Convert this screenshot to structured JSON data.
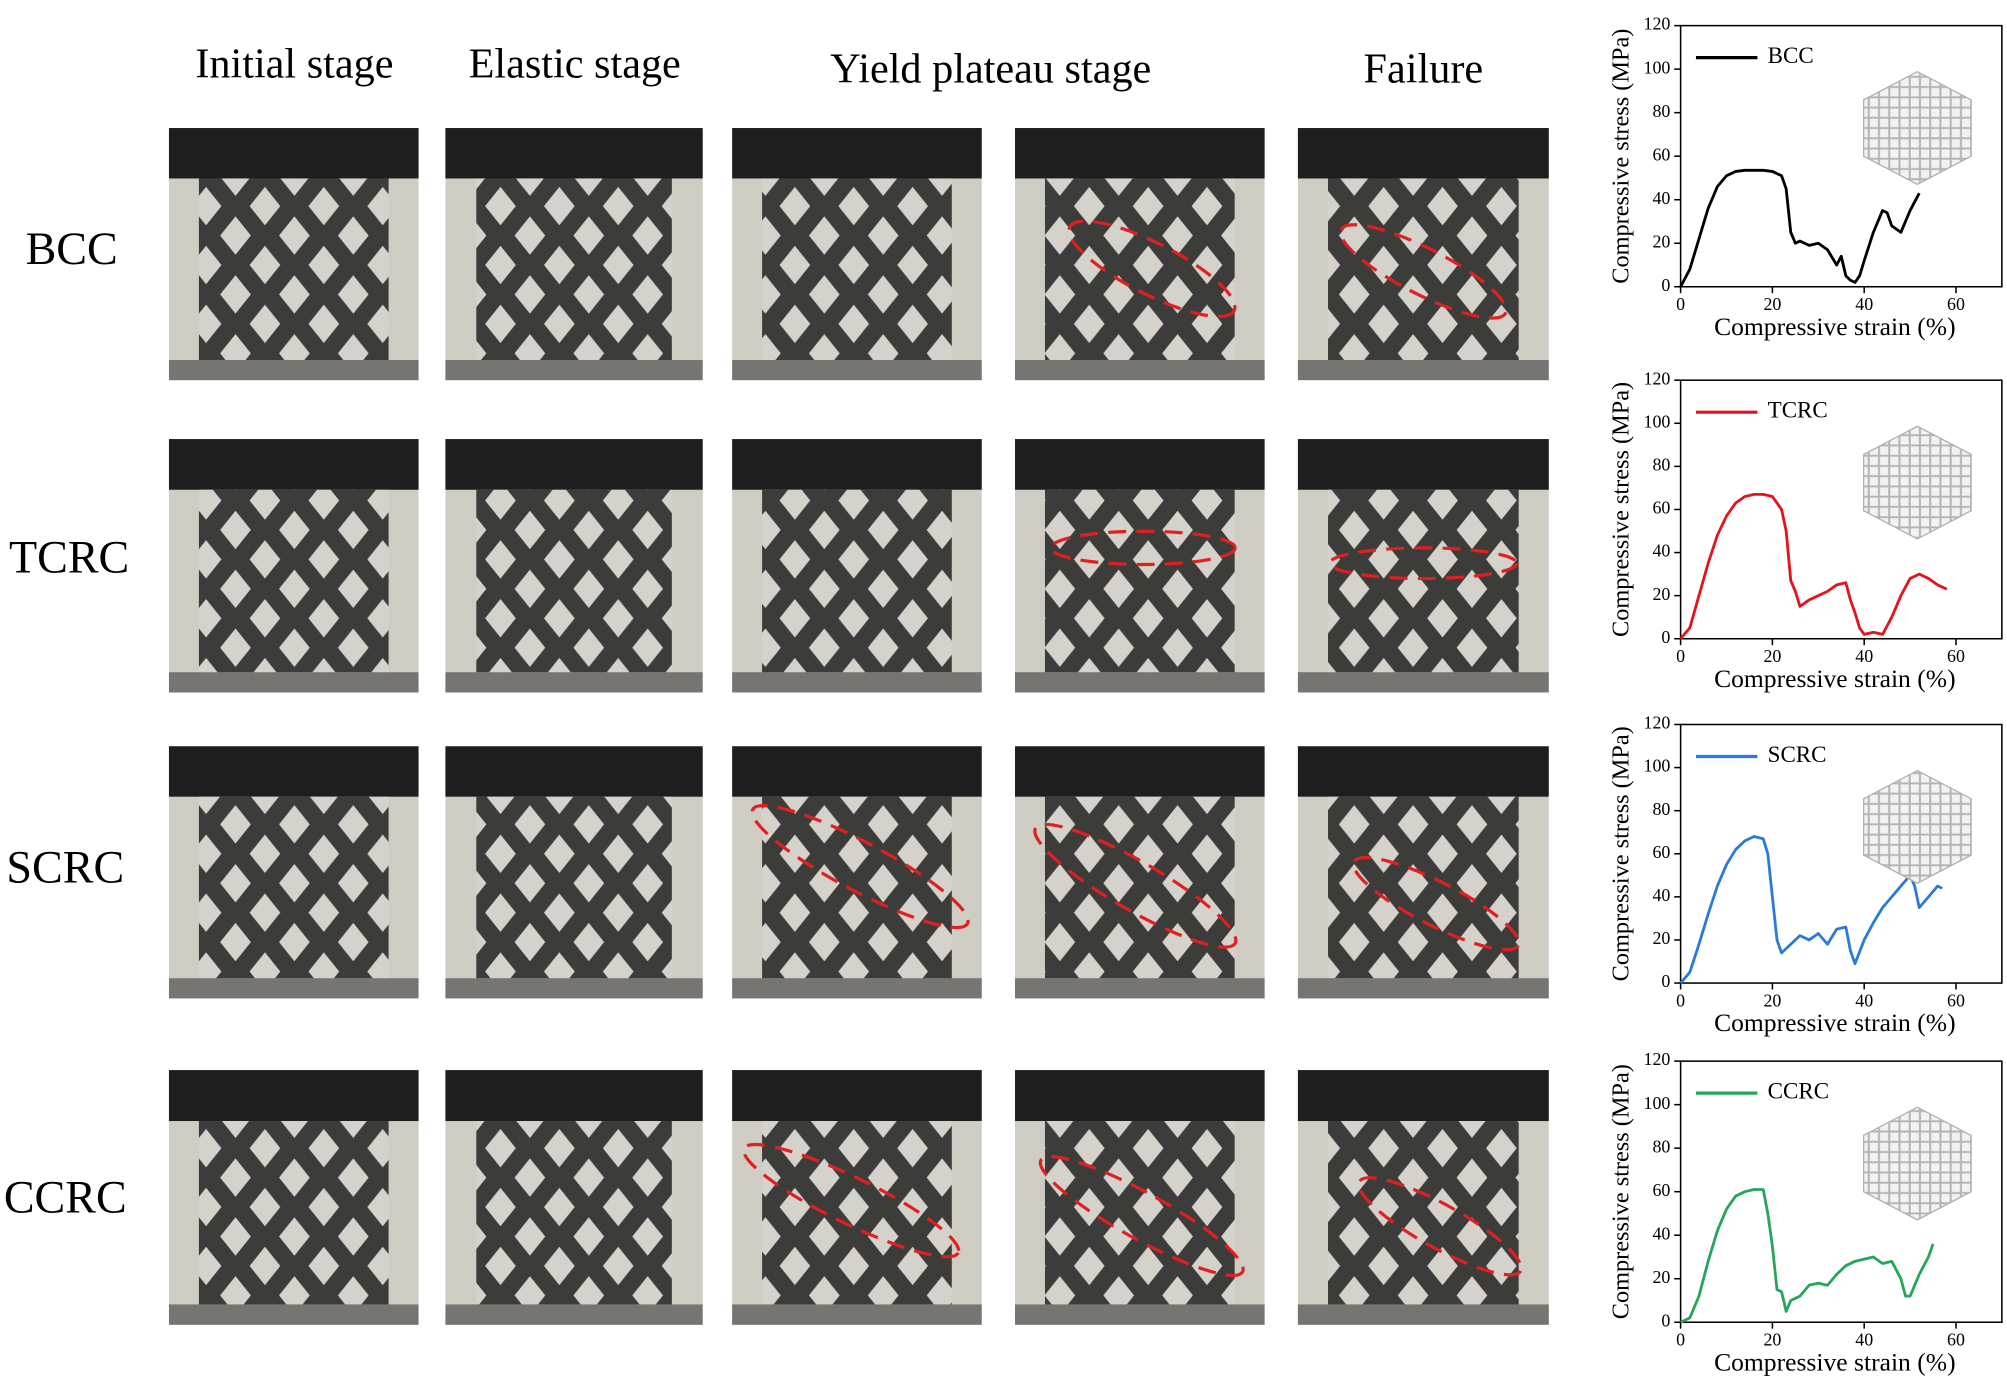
{
  "column_headers": [
    "Initial stage",
    "Elastic stage",
    "Yield plateau stage",
    "Failure"
  ],
  "row_labels": [
    "BCC",
    "TCRC",
    "SCRC",
    "CCRC"
  ],
  "chart_data": [
    {
      "type": "line",
      "xlabel": "Compressive strain (%)",
      "ylabel": "Compressive stress (MPa)",
      "xlim": [
        0,
        70
      ],
      "ylim": [
        0,
        120
      ],
      "xticks": [
        0,
        20,
        40,
        60
      ],
      "yticks": [
        0,
        20,
        40,
        60,
        80,
        100,
        120
      ],
      "x": [
        0,
        2,
        4,
        6,
        8,
        10,
        12,
        14,
        16,
        18,
        20,
        22,
        23,
        24,
        25,
        26,
        28,
        30,
        32,
        34,
        35,
        36,
        37,
        38,
        39,
        40,
        42,
        44,
        45,
        46,
        48,
        50,
        52
      ],
      "series": [
        {
          "name": "BCC",
          "color": "#000000",
          "values": [
            0,
            8,
            22,
            36,
            46,
            51,
            53,
            53.5,
            53.5,
            53.5,
            53,
            51,
            45,
            25,
            20,
            21,
            19,
            20,
            17,
            10,
            14,
            5,
            3,
            2,
            5,
            12,
            25,
            35,
            34,
            28,
            25,
            35,
            43
          ]
        }
      ]
    },
    {
      "type": "line",
      "xlabel": "Compressive strain (%)",
      "ylabel": "Compressive stress (MPa)",
      "xlim": [
        0,
        70
      ],
      "ylim": [
        0,
        120
      ],
      "xticks": [
        0,
        20,
        40,
        60
      ],
      "yticks": [
        0,
        20,
        40,
        60,
        80,
        100,
        120
      ],
      "x": [
        0,
        2,
        4,
        6,
        8,
        10,
        12,
        14,
        16,
        18,
        20,
        22,
        23,
        24,
        25,
        26,
        28,
        30,
        32,
        34,
        36,
        37,
        38,
        39,
        40,
        42,
        44,
        46,
        48,
        50,
        52,
        54,
        56,
        58
      ],
      "series": [
        {
          "name": "TCRC",
          "color": "#e3141b",
          "values": [
            0,
            5,
            20,
            35,
            48,
            57,
            63,
            66,
            67,
            67,
            66,
            60,
            50,
            27,
            22,
            15,
            18,
            20,
            22,
            25,
            26,
            18,
            12,
            5,
            2,
            3,
            2,
            10,
            20,
            28,
            30,
            28,
            25,
            23
          ]
        }
      ]
    },
    {
      "type": "line",
      "xlabel": "Compressive strain (%)",
      "ylabel": "Compressive stress (MPa)",
      "xlim": [
        0,
        70
      ],
      "ylim": [
        0,
        120
      ],
      "xticks": [
        0,
        20,
        40,
        60
      ],
      "yticks": [
        0,
        20,
        40,
        60,
        80,
        100,
        120
      ],
      "x": [
        0,
        2,
        4,
        6,
        8,
        10,
        12,
        14,
        16,
        18,
        19,
        20,
        21,
        22,
        24,
        26,
        28,
        30,
        32,
        34,
        36,
        37,
        38,
        40,
        42,
        44,
        46,
        48,
        50,
        51,
        52,
        54,
        56,
        57
      ],
      "series": [
        {
          "name": "SCRC",
          "color": "#2a7bd9",
          "values": [
            0,
            5,
            18,
            32,
            45,
            55,
            62,
            66,
            68,
            67,
            60,
            40,
            20,
            14,
            18,
            22,
            20,
            23,
            18,
            25,
            26,
            15,
            9,
            20,
            28,
            35,
            40,
            45,
            50,
            45,
            35,
            40,
            45,
            44
          ]
        }
      ]
    },
    {
      "type": "line",
      "xlabel": "Compressive strain (%)",
      "ylabel": "Compressive stress (MPa)",
      "xlim": [
        0,
        70
      ],
      "ylim": [
        0,
        120
      ],
      "xticks": [
        0,
        20,
        40,
        60
      ],
      "yticks": [
        0,
        20,
        40,
        60,
        80,
        100,
        120
      ],
      "x": [
        0,
        2,
        4,
        6,
        8,
        10,
        12,
        14,
        16,
        18,
        19,
        20,
        21,
        22,
        23,
        24,
        26,
        28,
        30,
        32,
        34,
        36,
        38,
        40,
        42,
        44,
        46,
        48,
        49,
        50,
        52,
        54,
        55
      ],
      "series": [
        {
          "name": "CCRC",
          "color": "#26a65a",
          "values": [
            0,
            2,
            12,
            28,
            42,
            52,
            58,
            60,
            61,
            61,
            50,
            35,
            15,
            14,
            5,
            10,
            12,
            17,
            18,
            17,
            22,
            26,
            28,
            29,
            30,
            27,
            28,
            20,
            12,
            12,
            22,
            30,
            36
          ]
        }
      ]
    }
  ]
}
